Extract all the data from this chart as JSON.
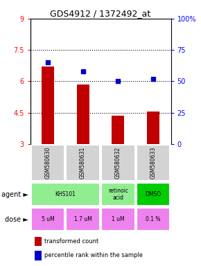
{
  "title": "GDS4912 / 1372492_at",
  "samples": [
    "GSM580630",
    "GSM580631",
    "GSM580632",
    "GSM580633"
  ],
  "bar_values": [
    6.7,
    5.85,
    4.35,
    4.55
  ],
  "dot_values": [
    65,
    58,
    50,
    52
  ],
  "ylim_left": [
    3,
    9
  ],
  "ylim_right": [
    0,
    100
  ],
  "yticks_left": [
    3,
    4.5,
    6,
    7.5,
    9
  ],
  "yticks_right": [
    0,
    25,
    50,
    75,
    100
  ],
  "ytick_labels_left": [
    "3",
    "4.5",
    "6",
    "7.5",
    "9"
  ],
  "ytick_labels_right": [
    "0",
    "25",
    "50",
    "75",
    "100%"
  ],
  "hlines": [
    4.5,
    6.0,
    7.5
  ],
  "bar_color": "#C00000",
  "dot_color": "#0000CC",
  "dose_labels": [
    "5 uM",
    "1.7 uM",
    "1 uM",
    "0.1 %"
  ],
  "dose_color": "#EE82EE",
  "sample_bg": "#D3D3D3",
  "legend_bar_label": "transformed count",
  "legend_dot_label": "percentile rank within the sample",
  "agent_row_label": "agent",
  "dose_row_label": "dose",
  "agent_groups": [
    {
      "span": [
        0,
        1
      ],
      "label": "KHS101",
      "color": "#90EE90"
    },
    {
      "span": [
        2,
        2
      ],
      "label": "retinoic\nacid",
      "color": "#90EE90"
    },
    {
      "span": [
        3,
        3
      ],
      "label": "DMSO",
      "color": "#00CC00"
    }
  ]
}
